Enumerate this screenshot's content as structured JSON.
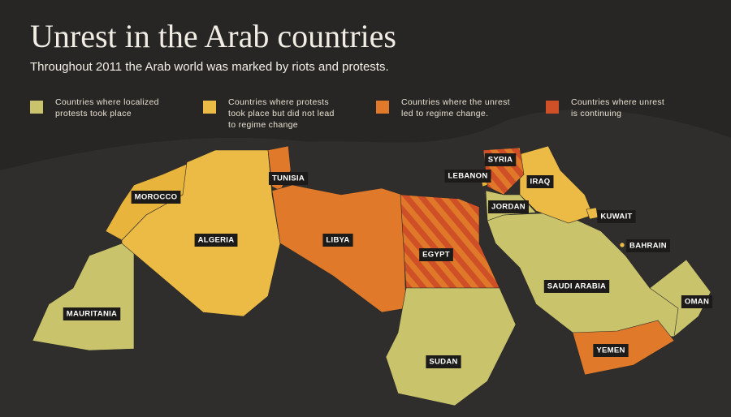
{
  "header": {
    "title": "Unrest in the Arab countries",
    "subtitle": "Throughout 2011 the Arab world was marked by riots and protests."
  },
  "legend": [
    {
      "lines": [
        "Countries where localized",
        "protests took place"
      ]
    },
    {
      "lines": [
        "Countries where protests",
        "took place but did not lead",
        "to regime change"
      ]
    },
    {
      "lines": [
        "Countries where the unrest",
        "led to regime change."
      ]
    },
    {
      "lines": [
        "Countries where unrest",
        "is continuing"
      ]
    }
  ],
  "countries": [
    "MOROCCO",
    "ALGERIA",
    "TUNISIA",
    "LIBYA",
    "EGYPT",
    "SYRIA",
    "LEBANON",
    "IRAQ",
    "JORDAN",
    "KUWAIT",
    "BAHRAIN",
    "SAUDI ARABIA",
    "OMAN",
    "YEMEN",
    "MAURITANIA",
    "SUDAN"
  ]
}
